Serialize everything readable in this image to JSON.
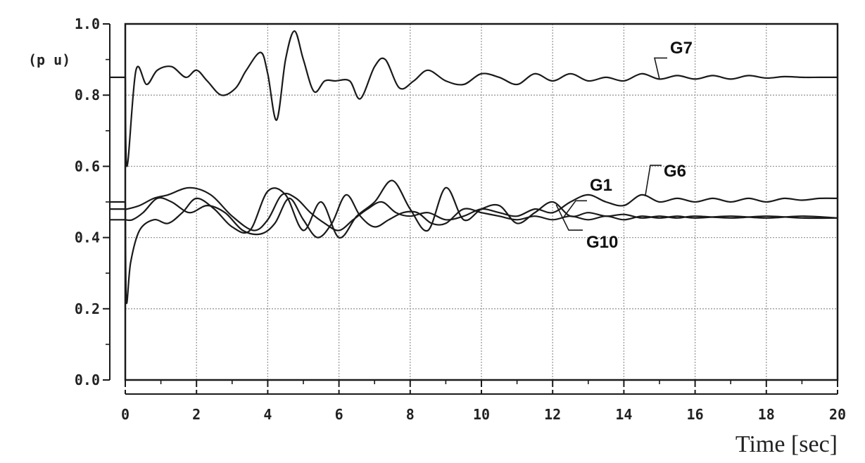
{
  "chart_data": {
    "type": "line",
    "xlabel": "Time [sec]",
    "ylabel": "(p u)",
    "xlim": [
      0,
      20
    ],
    "ylim": [
      0,
      1.0
    ],
    "x_ticks": [
      "0",
      "2",
      "4",
      "6",
      "8",
      "10",
      "12",
      "14",
      "16",
      "18",
      "20"
    ],
    "y_ticks": [
      "0.0",
      "0.2",
      "0.4",
      "0.6",
      "0.8",
      "1.0"
    ],
    "grid": true,
    "series": [
      {
        "name": "G7",
        "x": [
          0,
          0.05,
          0.3,
          0.6,
          0.9,
          1.3,
          1.7,
          2.0,
          2.3,
          2.7,
          3.1,
          3.4,
          3.8,
          4.0,
          4.25,
          4.5,
          4.75,
          5.0,
          5.3,
          5.6,
          5.9,
          6.3,
          6.6,
          7.0,
          7.3,
          7.7,
          8.1,
          8.5,
          9.0,
          9.5,
          10.0,
          10.5,
          11.0,
          11.5,
          12.0,
          12.5,
          13.0,
          13.5,
          14.0,
          14.5,
          15.0,
          15.5,
          16.0,
          16.5,
          17.0,
          17.5,
          18.0,
          18.5,
          19.0,
          19.5,
          20.0
        ],
        "y": [
          0.85,
          0.6,
          0.87,
          0.83,
          0.87,
          0.88,
          0.85,
          0.87,
          0.84,
          0.8,
          0.82,
          0.87,
          0.92,
          0.86,
          0.73,
          0.9,
          0.98,
          0.9,
          0.81,
          0.84,
          0.84,
          0.84,
          0.79,
          0.88,
          0.9,
          0.82,
          0.84,
          0.87,
          0.84,
          0.83,
          0.86,
          0.85,
          0.83,
          0.86,
          0.84,
          0.86,
          0.84,
          0.85,
          0.84,
          0.86,
          0.845,
          0.855,
          0.845,
          0.855,
          0.845,
          0.855,
          0.848,
          0.852,
          0.85,
          0.85,
          0.85
        ]
      },
      {
        "name": "G6",
        "x": [
          0,
          0.05,
          0.4,
          0.8,
          1.2,
          1.8,
          2.4,
          3.0,
          3.6,
          4.0,
          4.4,
          4.8,
          5.2,
          5.6,
          6.0,
          6.4,
          6.8,
          7.2,
          7.6,
          8.0,
          8.5,
          9.0,
          9.5,
          10.0,
          10.5,
          11.0,
          11.5,
          12.0,
          12.5,
          13.0,
          13.5,
          14.0,
          14.5,
          15.0,
          15.5,
          16.0,
          16.5,
          17.0,
          17.5,
          18.0,
          18.5,
          19.0,
          19.5,
          20.0
        ],
        "y": [
          0.48,
          0.48,
          0.49,
          0.51,
          0.52,
          0.54,
          0.52,
          0.46,
          0.42,
          0.45,
          0.52,
          0.51,
          0.47,
          0.44,
          0.42,
          0.45,
          0.48,
          0.5,
          0.47,
          0.46,
          0.47,
          0.45,
          0.46,
          0.48,
          0.47,
          0.46,
          0.48,
          0.47,
          0.5,
          0.52,
          0.5,
          0.49,
          0.52,
          0.5,
          0.51,
          0.5,
          0.51,
          0.5,
          0.51,
          0.5,
          0.51,
          0.505,
          0.51,
          0.51
        ]
      },
      {
        "name": "G1",
        "x": [
          0,
          0.2,
          0.5,
          0.9,
          1.3,
          1.8,
          2.3,
          2.8,
          3.3,
          3.8,
          4.2,
          4.6,
          5.0,
          5.4,
          5.8,
          6.2,
          6.6,
          7.0,
          7.4,
          7.8,
          8.2,
          8.6,
          9.0,
          9.5,
          10.0,
          10.5,
          11.0,
          11.5,
          12.0,
          12.5,
          13.0,
          13.5,
          14.0,
          14.5,
          15.0,
          15.5,
          16.0,
          17.0,
          18.0,
          19.0,
          20.0
        ],
        "y": [
          0.45,
          0.45,
          0.47,
          0.51,
          0.5,
          0.47,
          0.49,
          0.47,
          0.42,
          0.41,
          0.44,
          0.51,
          0.45,
          0.4,
          0.44,
          0.52,
          0.46,
          0.43,
          0.45,
          0.47,
          0.47,
          0.44,
          0.44,
          0.48,
          0.47,
          0.46,
          0.45,
          0.46,
          0.45,
          0.46,
          0.45,
          0.46,
          0.45,
          0.46,
          0.455,
          0.46,
          0.455,
          0.46,
          0.455,
          0.46,
          0.455
        ]
      },
      {
        "name": "G10",
        "x": [
          0,
          0.03,
          0.15,
          0.4,
          0.8,
          1.2,
          1.6,
          2.0,
          2.5,
          3.0,
          3.5,
          4.0,
          4.5,
          5.0,
          5.5,
          6.0,
          6.5,
          7.0,
          7.5,
          8.0,
          8.5,
          9.0,
          9.5,
          10.0,
          10.5,
          11.0,
          11.5,
          12.0,
          12.5,
          13.0,
          13.5,
          14.0,
          14.5,
          15.0,
          15.5,
          16.0,
          17.0,
          18.0,
          19.0,
          20.0
        ],
        "y": [
          0.5,
          0.22,
          0.33,
          0.42,
          0.45,
          0.44,
          0.47,
          0.51,
          0.48,
          0.43,
          0.42,
          0.53,
          0.52,
          0.42,
          0.5,
          0.4,
          0.46,
          0.5,
          0.56,
          0.48,
          0.42,
          0.54,
          0.45,
          0.48,
          0.49,
          0.44,
          0.47,
          0.5,
          0.46,
          0.47,
          0.46,
          0.465,
          0.455,
          0.46,
          0.455,
          0.46,
          0.455,
          0.46,
          0.455,
          0.455
        ]
      }
    ],
    "annotations": [
      {
        "label": "G7",
        "series": "G7"
      },
      {
        "label": "G6",
        "series": "G6"
      },
      {
        "label": "G1",
        "series": "G1"
      },
      {
        "label": "G10",
        "series": "G10"
      }
    ]
  }
}
